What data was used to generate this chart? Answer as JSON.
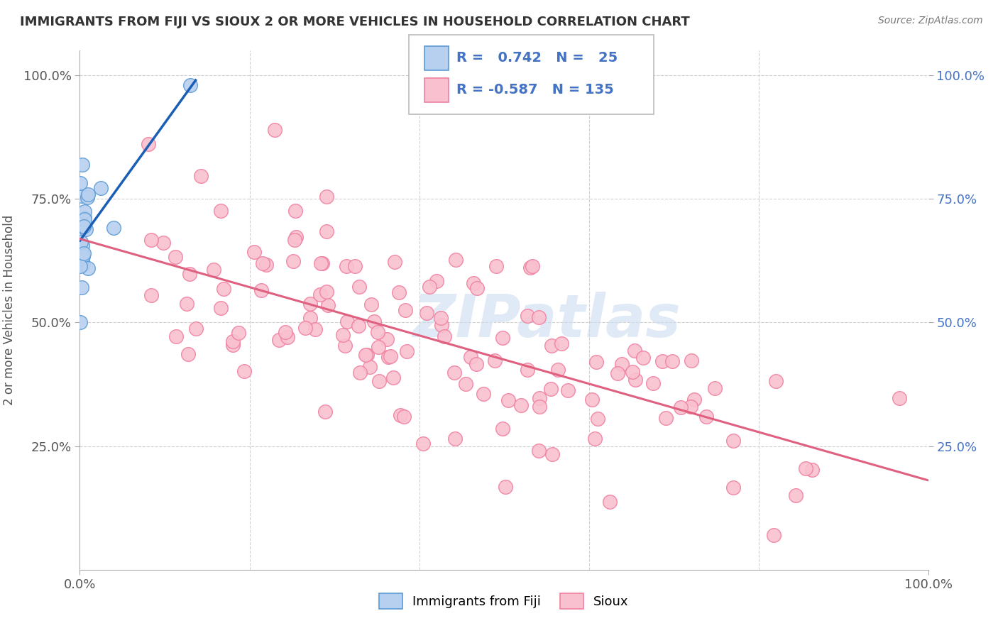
{
  "title": "IMMIGRANTS FROM FIJI VS SIOUX 2 OR MORE VEHICLES IN HOUSEHOLD CORRELATION CHART",
  "source_text": "Source: ZipAtlas.com",
  "ylabel": "2 or more Vehicles in Household",
  "fiji_color": "#b8d0f0",
  "fiji_edge_color": "#5b9bd5",
  "sioux_color": "#f9c0cf",
  "sioux_edge_color": "#f080a0",
  "fiji_line_color": "#1a5fb4",
  "sioux_line_color": "#e06080",
  "background_color": "#ffffff",
  "grid_color": "#d0d0d0",
  "title_color": "#333333",
  "right_label_color": "#4472c4",
  "watermark_color": "#ccddf0",
  "xlim": [
    0.0,
    1.0
  ],
  "ylim": [
    0.0,
    1.05
  ],
  "fiji_R": 0.742,
  "fiji_N": 25,
  "sioux_R": -0.587,
  "sioux_N": 135
}
